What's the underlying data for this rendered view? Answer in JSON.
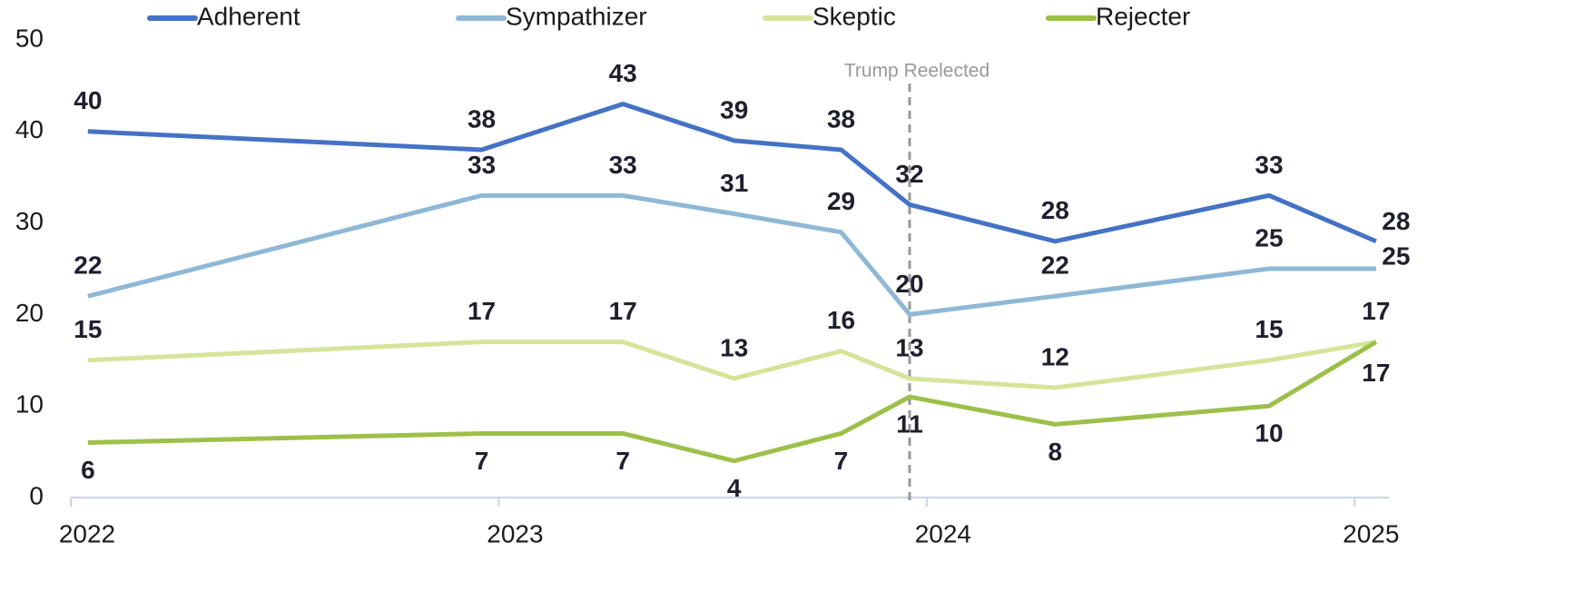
{
  "chart_data": {
    "type": "line",
    "x": [
      2022.04,
      2022.96,
      2023.29,
      2023.55,
      2023.8,
      2023.96,
      2024.3,
      2024.8,
      2025.05
    ],
    "series": [
      {
        "name": "Adherent",
        "color": "#4472c4",
        "values": [
          40,
          38,
          43,
          39,
          38,
          32,
          28,
          33,
          28
        ]
      },
      {
        "name": "Sympathizer",
        "color": "#8fb8d6",
        "values": [
          22,
          33,
          33,
          31,
          29,
          20,
          22,
          25,
          25
        ]
      },
      {
        "name": "Skeptic",
        "color": "#d4e59a",
        "values": [
          15,
          17,
          17,
          13,
          16,
          13,
          12,
          15,
          17
        ]
      },
      {
        "name": "Rejecter",
        "color": "#9cc04a",
        "values": [
          6,
          7,
          7,
          4,
          7,
          11,
          8,
          10,
          17
        ]
      }
    ],
    "xlim": [
      2022,
      2025.08
    ],
    "xticks": [
      2022,
      2023,
      2024,
      2025
    ],
    "ylim": [
      0,
      50
    ],
    "yticks": [
      0,
      10,
      20,
      30,
      40,
      50
    ],
    "annotations": [
      {
        "x": 2023.96,
        "text": "Trump Reelected"
      }
    ],
    "legend": "top"
  }
}
